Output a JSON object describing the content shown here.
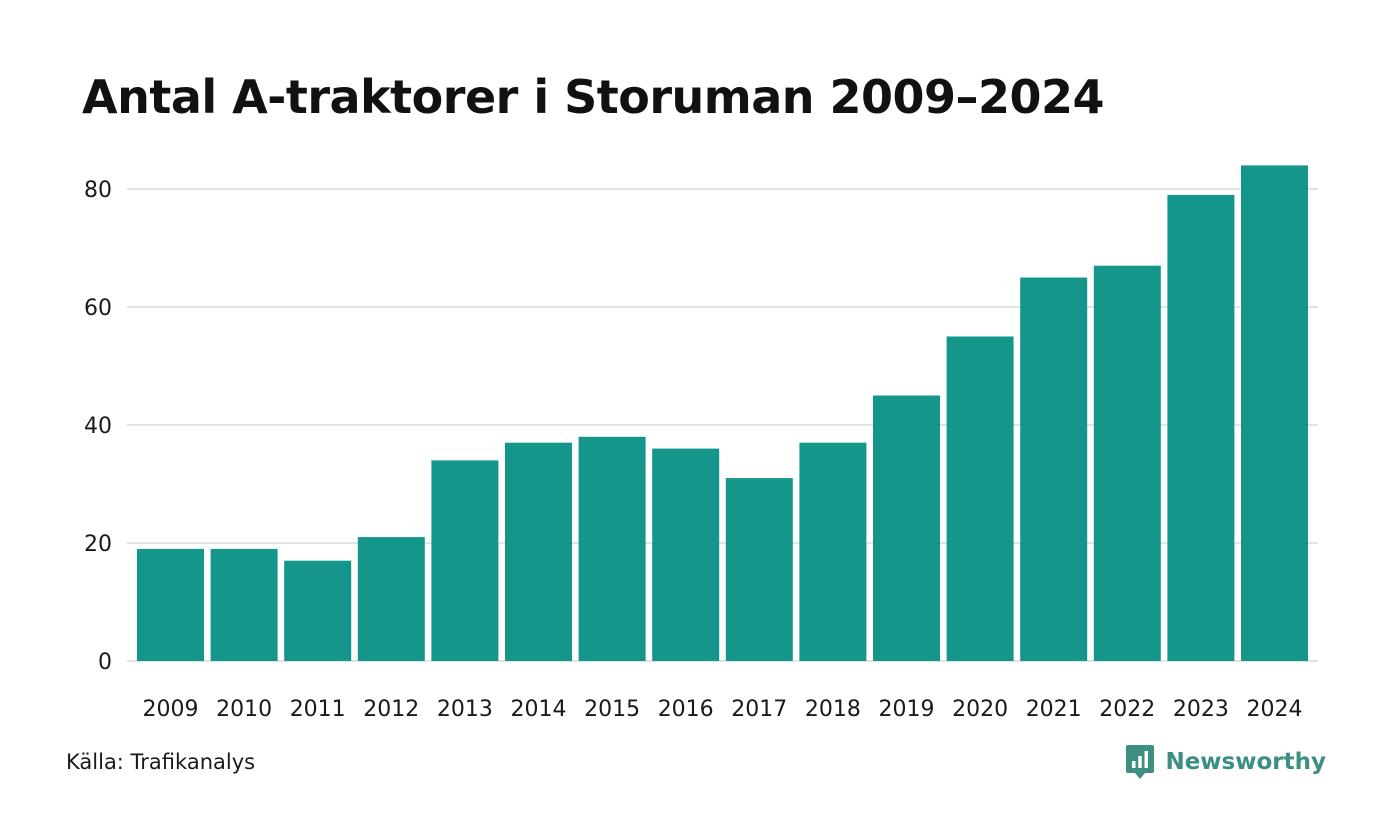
{
  "title": "Antal A-traktorer i Storuman 2009–2024",
  "source": "Källa: Trafikanalys",
  "brand": {
    "name": "Newsworthy",
    "icon": "newsworthy-logo-icon",
    "color": "#3d8f84"
  },
  "chart_data": {
    "type": "bar",
    "title": "Antal A-traktorer i Storuman 2009–2024",
    "xlabel": "",
    "ylabel": "",
    "categories": [
      "2009",
      "2010",
      "2011",
      "2012",
      "2013",
      "2014",
      "2015",
      "2016",
      "2017",
      "2018",
      "2019",
      "2020",
      "2021",
      "2022",
      "2023",
      "2024"
    ],
    "values": [
      19,
      19,
      17,
      21,
      34,
      37,
      38,
      36,
      31,
      37,
      45,
      55,
      65,
      67,
      79,
      84
    ],
    "ylim": [
      0,
      85
    ],
    "yticks": [
      0,
      20,
      40,
      60,
      80
    ],
    "grid": true,
    "legend": "none",
    "bar_color": "#15968a",
    "grid_color": "#e3e3e3"
  }
}
